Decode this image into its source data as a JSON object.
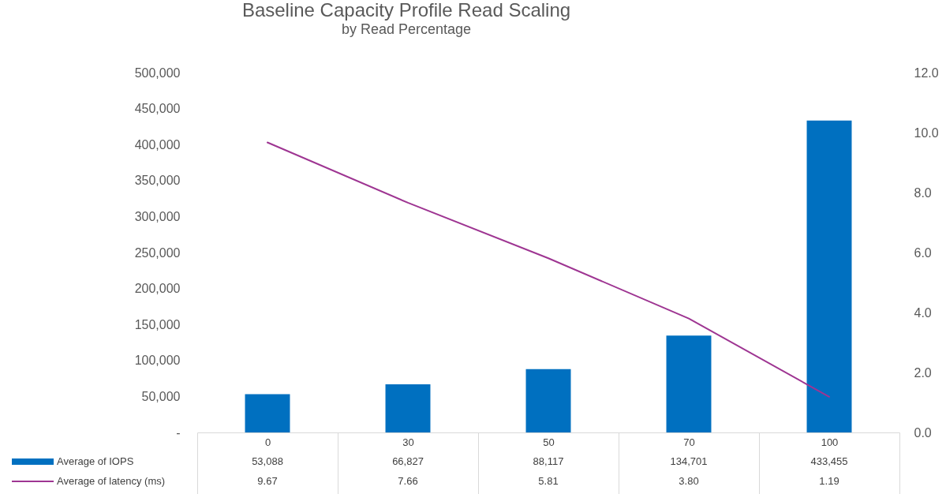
{
  "chart_data": {
    "type": "bar",
    "title": "Baseline Capacity Profile Read Scaling",
    "subtitle": "by Read Percentage",
    "categories": [
      "0",
      "30",
      "50",
      "70",
      "100"
    ],
    "series": [
      {
        "name": "Average of IOPS",
        "color": "#0070c0",
        "values": [
          53088,
          66827,
          88117,
          134701,
          433455
        ],
        "value_labels": [
          "53,088",
          "66,827",
          "88,117",
          "134,701",
          "433,455"
        ]
      },
      {
        "name": "Average of latency (ms)",
        "type": "line",
        "axis": "y2",
        "color": "#9e3592",
        "values": [
          9.67,
          7.66,
          5.81,
          3.8,
          1.19
        ],
        "value_labels": [
          "9.67",
          "7.66",
          "5.81",
          "3.80",
          "1.19"
        ]
      }
    ],
    "ylim": [
      0,
      500000
    ],
    "yticks": [
      {
        "value": 0,
        "label": "-"
      },
      {
        "value": 50000,
        "label": "50,000"
      },
      {
        "value": 100000,
        "label": "100,000"
      },
      {
        "value": 150000,
        "label": "150,000"
      },
      {
        "value": 200000,
        "label": "200,000"
      },
      {
        "value": 250000,
        "label": "250,000"
      },
      {
        "value": 300000,
        "label": "300,000"
      },
      {
        "value": 350000,
        "label": "350,000"
      },
      {
        "value": 400000,
        "label": "400,000"
      },
      {
        "value": 450000,
        "label": "450,000"
      },
      {
        "value": 500000,
        "label": "500,000"
      }
    ],
    "y2lim": [
      0,
      12
    ],
    "y2ticks": [
      {
        "value": 0,
        "label": "0.0"
      },
      {
        "value": 2,
        "label": "2.0"
      },
      {
        "value": 4,
        "label": "4.0"
      },
      {
        "value": 6,
        "label": "6.0"
      },
      {
        "value": 8,
        "label": "8.0"
      },
      {
        "value": 10,
        "label": "10.0"
      },
      {
        "value": 12,
        "label": "12.0"
      }
    ],
    "legend": "bottom",
    "marker": "none",
    "line_style": "solid"
  }
}
